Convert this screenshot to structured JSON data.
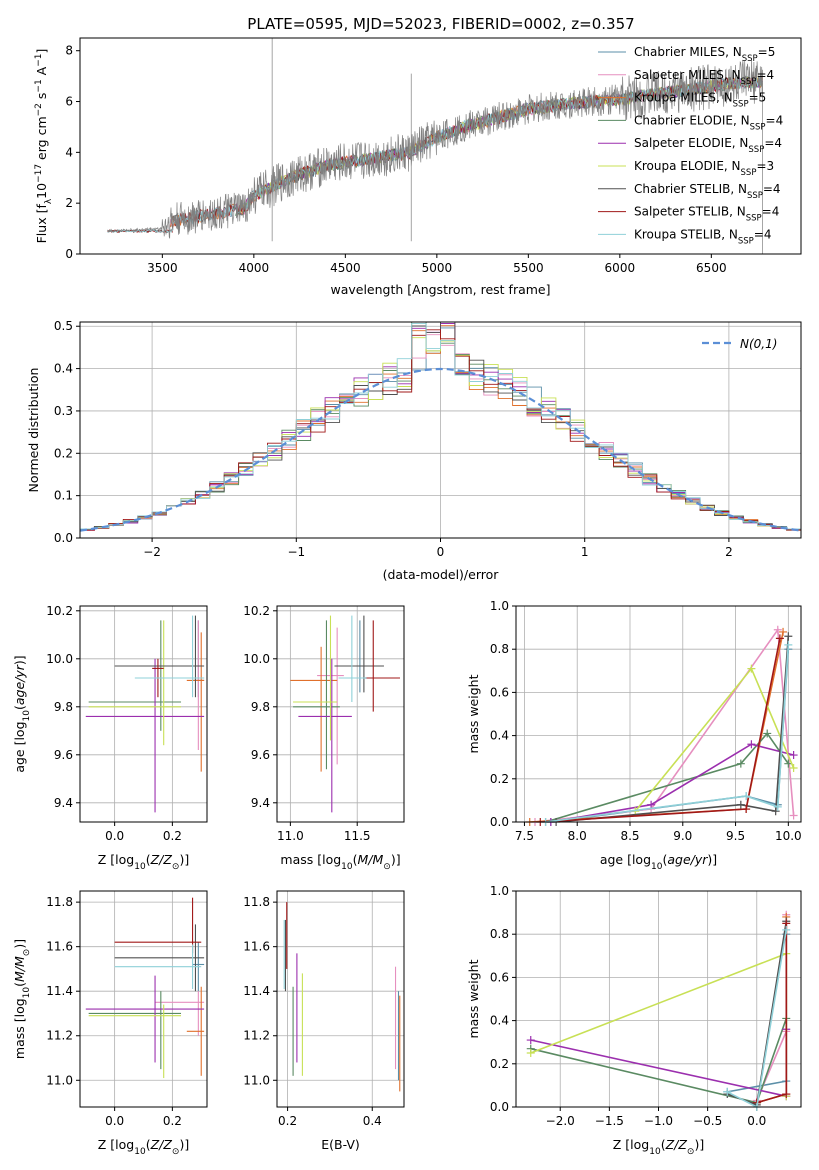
{
  "figure_title": "PLATE=0595, MJD=52023, FIBERID=0002, z=0.357",
  "colors": {
    "Chabrier MILES": "#5b8fa8",
    "Salpeter MILES": "#e68fbf",
    "Kroupa MILES": "#e0702c",
    "Chabrier ELODIE": "#5a8a62",
    "Salpeter ELODIE": "#9b2fae",
    "Kroupa ELODIE": "#c8e055",
    "Chabrier STELIB": "#505050",
    "Salpeter STELIB": "#a01818",
    "Kroupa STELIB": "#8fd0d8",
    "data": "#808080",
    "normal": "#5b8fd6"
  },
  "chart_data": [
    {
      "id": "spectrum",
      "type": "line",
      "title": "PLATE=0595, MJD=52023, FIBERID=0002, z=0.357",
      "xlabel": "wavelength [Angstrom, rest frame]",
      "ylabel": "Flux [f_λ 10^-17 erg cm^-2 s^-1 A^-1]",
      "xlim": [
        3050,
        6990
      ],
      "ylim": [
        0,
        8.5
      ],
      "xticks": [
        3500,
        4000,
        4500,
        5000,
        5500,
        6000,
        6500
      ],
      "yticks": [
        0,
        2,
        4,
        6,
        8
      ],
      "legend_position": "upper-right",
      "legend": [
        {
          "series": "Chabrier MILES",
          "base": "Chabrier MILES, N",
          "sub": "SSP",
          "val": "=5"
        },
        {
          "series": "Salpeter MILES",
          "base": "Salpeter MILES, N",
          "sub": "SSP",
          "val": "=4"
        },
        {
          "series": "Kroupa MILES",
          "base": "Kroupa MILES, N",
          "sub": "SSP",
          "val": "=5"
        },
        {
          "series": "Chabrier ELODIE",
          "base": "Chabrier ELODIE, N",
          "sub": "SSP",
          "val": "=4"
        },
        {
          "series": "Salpeter ELODIE",
          "base": "Salpeter ELODIE, N",
          "sub": "SSP",
          "val": "=4"
        },
        {
          "series": "Kroupa ELODIE",
          "base": "Kroupa ELODIE, N",
          "sub": "SSP",
          "val": "=3"
        },
        {
          "series": "Chabrier STELIB",
          "base": "Chabrier STELIB, N",
          "sub": "SSP",
          "val": "=4"
        },
        {
          "series": "Salpeter STELIB",
          "base": "Salpeter STELIB, N",
          "sub": "SSP",
          "val": "=4"
        },
        {
          "series": "Kroupa STELIB",
          "base": "Kroupa STELIB, N",
          "sub": "SSP",
          "val": "=4"
        }
      ],
      "model_start": {
        "MILES": 3540,
        "ELODIE": 3900,
        "STELIB": 3200
      },
      "continuum": [
        [
          3200,
          0.9
        ],
        [
          3500,
          1.0
        ],
        [
          3550,
          1.3
        ],
        [
          3800,
          1.6
        ],
        [
          3950,
          1.8
        ],
        [
          4000,
          2.3
        ],
        [
          4200,
          3.0
        ],
        [
          4400,
          3.5
        ],
        [
          4600,
          3.7
        ],
        [
          4850,
          4.0
        ],
        [
          5000,
          4.6
        ],
        [
          5150,
          5.0
        ],
        [
          5300,
          5.3
        ],
        [
          5500,
          5.7
        ],
        [
          5700,
          5.9
        ],
        [
          6000,
          6.1
        ],
        [
          6300,
          6.4
        ],
        [
          6600,
          6.7
        ],
        [
          6800,
          6.8
        ]
      ],
      "spikes": [
        [
          4100,
          8.8
        ],
        [
          4860,
          7.1
        ]
      ],
      "data_extent": [
        3200,
        6780
      ]
    },
    {
      "id": "residuals",
      "type": "line",
      "xlabel": "(data-model)/error",
      "ylabel": "Normed distribution",
      "xlim": [
        -2.5,
        2.5
      ],
      "ylim": [
        0,
        0.51
      ],
      "xticks": [
        -2,
        -1,
        0,
        1,
        2
      ],
      "yticks": [
        0.0,
        0.1,
        0.2,
        0.3,
        0.4,
        0.5
      ],
      "legend_position": "upper-right",
      "curve_label": "N(0,1)",
      "bin_width": 0.1
    },
    {
      "id": "age_vs_Z",
      "type": "scatter",
      "xlabel": "Z [log10(Z/Z⊙)]",
      "ylabel": "age [log10(age/yr)]",
      "xlim": [
        -0.12,
        0.32
      ],
      "ylim": [
        9.32,
        10.22
      ],
      "xticks": [
        0.0,
        0.2
      ],
      "yticks": [
        9.4,
        9.6,
        9.8,
        10.0,
        10.2
      ],
      "points": [
        {
          "s": "Chabrier MILES",
          "x": 0.29,
          "y": 9.91,
          "xe": [
            0.02,
            0.02
          ],
          "ye": [
            0.07,
            0.25
          ]
        },
        {
          "s": "Salpeter MILES",
          "x": 0.29,
          "y": 9.92,
          "xe": [
            0.15,
            0.02
          ],
          "ye": [
            0.3,
            0.24
          ]
        },
        {
          "s": "Kroupa MILES",
          "x": 0.3,
          "y": 9.91,
          "xe": [
            0.05,
            0.01
          ],
          "ye": [
            0.38,
            0.2
          ]
        },
        {
          "s": "Chabrier ELODIE",
          "x": 0.16,
          "y": 9.82,
          "xe": [
            0.25,
            0.07
          ],
          "ye": [
            0.12,
            0.34
          ]
        },
        {
          "s": "Salpeter ELODIE",
          "x": 0.14,
          "y": 9.76,
          "xe": [
            0.24,
            0.17
          ],
          "ye": [
            0.4,
            0.24
          ]
        },
        {
          "s": "Kroupa ELODIE",
          "x": 0.17,
          "y": 9.8,
          "xe": [
            0.26,
            0.06
          ],
          "ye": [
            0.16,
            0.36
          ]
        },
        {
          "s": "Chabrier STELIB",
          "x": 0.28,
          "y": 9.97,
          "xe": [
            0.28,
            0.03
          ],
          "ye": [
            0.13,
            0.21
          ]
        },
        {
          "s": "Salpeter STELIB",
          "x": 0.15,
          "y": 9.96,
          "xe": [
            0.02,
            0.02
          ],
          "ye": [
            0.12,
            0.04
          ]
        },
        {
          "s": "Kroupa STELIB",
          "x": 0.27,
          "y": 9.92,
          "xe": [
            0.2,
            0.04
          ],
          "ye": [
            0.08,
            0.26
          ]
        }
      ]
    },
    {
      "id": "age_vs_mass",
      "type": "scatter",
      "xlabel": "mass [log10(M/M⊙)]",
      "ylabel": "",
      "xlim": [
        10.9,
        11.85
      ],
      "ylim": [
        9.32,
        10.22
      ],
      "xticks": [
        11.0,
        11.5
      ],
      "yticks": [
        9.4,
        9.6,
        9.8,
        10.0,
        10.2
      ],
      "points": [
        {
          "s": "Chabrier MILES",
          "x": 11.52,
          "y": 9.92,
          "xe": [
            0.12,
            0.1
          ],
          "ye": [
            0.06,
            0.24
          ]
        },
        {
          "s": "Salpeter MILES",
          "x": 11.35,
          "y": 9.93,
          "xe": [
            0.15,
            0.05
          ],
          "ye": [
            0.37,
            0.2
          ]
        },
        {
          "s": "Kroupa MILES",
          "x": 11.23,
          "y": 9.91,
          "xe": [
            0.23,
            0.12
          ],
          "ye": [
            0.38,
            0.14
          ]
        },
        {
          "s": "Chabrier ELODIE",
          "x": 11.27,
          "y": 9.8,
          "xe": [
            0.25,
            0.1
          ],
          "ye": [
            0.26,
            0.36
          ]
        },
        {
          "s": "Salpeter ELODIE",
          "x": 11.31,
          "y": 9.76,
          "xe": [
            0.25,
            0.15
          ],
          "ye": [
            0.4,
            0.24
          ]
        },
        {
          "s": "Kroupa ELODIE",
          "x": 11.3,
          "y": 9.82,
          "xe": [
            0.28,
            0.05
          ],
          "ye": [
            0.16,
            0.36
          ]
        },
        {
          "s": "Chabrier STELIB",
          "x": 11.55,
          "y": 9.97,
          "xe": [
            0.22,
            0.15
          ],
          "ye": [
            0.11,
            0.21
          ]
        },
        {
          "s": "Salpeter STELIB",
          "x": 11.62,
          "y": 9.92,
          "xe": [
            0.05,
            0.2
          ],
          "ye": [
            0.14,
            0.24
          ]
        },
        {
          "s": "Kroupa STELIB",
          "x": 11.46,
          "y": 9.92,
          "xe": [
            0.1,
            0.1
          ],
          "ye": [
            0.1,
            0.26
          ]
        }
      ]
    },
    {
      "id": "weight_vs_age",
      "type": "line",
      "xlabel": "age [log10(age/yr)]",
      "ylabel": "mass weight",
      "xlim": [
        7.42,
        10.12
      ],
      "ylim": [
        0,
        1
      ],
      "xticks": [
        7.5,
        8.0,
        8.5,
        9.0,
        9.5,
        10.0
      ],
      "yticks": [
        0.0,
        0.2,
        0.4,
        0.6,
        0.8,
        1.0
      ],
      "series": [
        {
          "s": "Chabrier MILES",
          "x": [
            7.75,
            9.6,
            9.9,
            10.0
          ],
          "y": [
            0.0,
            0.12,
            0.08,
            0.8
          ]
        },
        {
          "s": "Salpeter MILES",
          "x": [
            7.6,
            8.7,
            9.9,
            10.05
          ],
          "y": [
            0.0,
            0.06,
            0.89,
            0.03
          ]
        },
        {
          "s": "Kroupa MILES",
          "x": [
            7.55,
            9.6,
            9.95
          ],
          "y": [
            0.0,
            0.06,
            0.88
          ]
        },
        {
          "s": "Chabrier ELODIE",
          "x": [
            7.7,
            9.55,
            9.8,
            10.0
          ],
          "y": [
            0.0,
            0.27,
            0.41,
            0.27
          ]
        },
        {
          "s": "Salpeter ELODIE",
          "x": [
            7.75,
            8.7,
            9.65,
            10.05
          ],
          "y": [
            0.0,
            0.08,
            0.36,
            0.31
          ]
        },
        {
          "s": "Kroupa ELODIE",
          "x": [
            8.55,
            9.65,
            10.05
          ],
          "y": [
            0.05,
            0.71,
            0.25
          ]
        },
        {
          "s": "Chabrier STELIB",
          "x": [
            7.8,
            9.55,
            9.88,
            10.0
          ],
          "y": [
            0.0,
            0.08,
            0.05,
            0.86
          ]
        },
        {
          "s": "Salpeter STELIB",
          "x": [
            7.65,
            9.6,
            9.92
          ],
          "y": [
            0.0,
            0.06,
            0.85
          ]
        },
        {
          "s": "Kroupa STELIB",
          "x": [
            7.7,
            9.6,
            9.9,
            10.0
          ],
          "y": [
            0.0,
            0.12,
            0.07,
            0.82
          ]
        }
      ]
    },
    {
      "id": "mass_vs_Z",
      "type": "scatter",
      "xlabel": "Z [log10(Z/Z⊙)]",
      "ylabel": "mass [log10(M/M⊙)]",
      "xlim": [
        -0.12,
        0.32
      ],
      "ylim": [
        10.88,
        11.85
      ],
      "xticks": [
        0.0,
        0.2
      ],
      "yticks": [
        11.0,
        11.2,
        11.4,
        11.6,
        11.8
      ],
      "points": [
        {
          "s": "Chabrier MILES",
          "x": 0.29,
          "y": 11.52,
          "xe": [
            0.02,
            0.02
          ],
          "ye": [
            0.12,
            0.1
          ]
        },
        {
          "s": "Salpeter MILES",
          "x": 0.29,
          "y": 11.35,
          "xe": [
            0.15,
            0.02
          ],
          "ye": [
            0.15,
            0.05
          ]
        },
        {
          "s": "Kroupa MILES",
          "x": 0.3,
          "y": 11.22,
          "xe": [
            0.05,
            0.01
          ],
          "ye": [
            0.2,
            0.2
          ]
        },
        {
          "s": "Chabrier ELODIE",
          "x": 0.16,
          "y": 11.3,
          "xe": [
            0.25,
            0.07
          ],
          "ye": [
            0.25,
            0.1
          ]
        },
        {
          "s": "Salpeter ELODIE",
          "x": 0.14,
          "y": 11.32,
          "xe": [
            0.24,
            0.17
          ],
          "ye": [
            0.24,
            0.15
          ]
        },
        {
          "s": "Kroupa ELODIE",
          "x": 0.17,
          "y": 11.29,
          "xe": [
            0.26,
            0.06
          ],
          "ye": [
            0.28,
            0.05
          ]
        },
        {
          "s": "Chabrier STELIB",
          "x": 0.28,
          "y": 11.55,
          "xe": [
            0.28,
            0.03
          ],
          "ye": [
            0.15,
            0.15
          ]
        },
        {
          "s": "Salpeter STELIB",
          "x": 0.27,
          "y": 11.62,
          "xe": [
            0.27,
            0.03
          ],
          "ye": [
            0.05,
            0.2
          ]
        },
        {
          "s": "Kroupa STELIB",
          "x": 0.27,
          "y": 11.51,
          "xe": [
            0.27,
            0.03
          ],
          "ye": [
            0.1,
            0.1
          ]
        }
      ]
    },
    {
      "id": "mass_vs_EBV",
      "type": "scatter",
      "xlabel": "E(B-V)",
      "ylabel": "",
      "xlim": [
        0.175,
        0.475
      ],
      "ylim": [
        10.88,
        11.85
      ],
      "xticks": [
        0.2,
        0.4
      ],
      "yticks": [
        11.0,
        11.2,
        11.4,
        11.6,
        11.8
      ],
      "points": [
        {
          "s": "Chabrier MILES",
          "x": 0.462,
          "y": 11.25,
          "ye": [
            0.25,
            0.15
          ]
        },
        {
          "s": "Salpeter MILES",
          "x": 0.455,
          "y": 11.35,
          "ye": [
            0.3,
            0.16
          ]
        },
        {
          "s": "Kroupa MILES",
          "x": 0.465,
          "y": 11.2,
          "ye": [
            0.25,
            0.18
          ]
        },
        {
          "s": "Chabrier ELODIE",
          "x": 0.213,
          "y": 11.3,
          "ye": [
            0.28,
            0.12
          ]
        },
        {
          "s": "Salpeter ELODIE",
          "x": 0.222,
          "y": 11.32,
          "ye": [
            0.24,
            0.25
          ]
        },
        {
          "s": "Kroupa ELODIE",
          "x": 0.235,
          "y": 11.3,
          "ye": [
            0.28,
            0.18
          ]
        },
        {
          "s": "Chabrier STELIB",
          "x": 0.195,
          "y": 11.55,
          "ye": [
            0.15,
            0.17
          ]
        },
        {
          "s": "Salpeter STELIB",
          "x": 0.198,
          "y": 11.62,
          "ye": [
            0.12,
            0.18
          ]
        },
        {
          "s": "Kroupa STELIB",
          "x": 0.192,
          "y": 11.51,
          "ye": [
            0.1,
            0.21
          ]
        }
      ]
    },
    {
      "id": "weight_vs_Z",
      "type": "line",
      "xlabel": "Z [log10(Z/Z⊙)]",
      "ylabel": "mass weight",
      "xlim": [
        -2.45,
        0.45
      ],
      "ylim": [
        0,
        1
      ],
      "xticks": [
        -2.0,
        -1.5,
        -1.0,
        -0.5,
        0.0
      ],
      "yticks": [
        0.0,
        0.2,
        0.4,
        0.6,
        0.8,
        1.0
      ],
      "series": [
        {
          "s": "Chabrier MILES",
          "x": [
            -0.3,
            0.3,
            0.3
          ],
          "y": [
            0.07,
            0.12,
            0.8
          ]
        },
        {
          "s": "Salpeter MILES",
          "x": [
            0.0,
            0.3,
            0.3
          ],
          "y": [
            0.03,
            0.35,
            0.89
          ]
        },
        {
          "s": "Kroupa MILES",
          "x": [
            0.0,
            0.3,
            0.3
          ],
          "y": [
            0.02,
            0.06,
            0.88
          ]
        },
        {
          "s": "Chabrier ELODIE",
          "x": [
            -2.3,
            0.0,
            0.3
          ],
          "y": [
            0.27,
            0.02,
            0.41
          ]
        },
        {
          "s": "Salpeter ELODIE",
          "x": [
            -2.3,
            0.3,
            0.3
          ],
          "y": [
            0.31,
            0.05,
            0.36
          ]
        },
        {
          "s": "Kroupa ELODIE",
          "x": [
            -2.3,
            0.3,
            0.3
          ],
          "y": [
            0.25,
            0.71,
            0.05
          ]
        },
        {
          "s": "Chabrier STELIB",
          "x": [
            -0.3,
            0.0,
            0.3
          ],
          "y": [
            0.06,
            0.01,
            0.86
          ]
        },
        {
          "s": "Salpeter STELIB",
          "x": [
            0.0,
            0.3,
            0.3
          ],
          "y": [
            0.02,
            0.06,
            0.85
          ]
        },
        {
          "s": "Kroupa STELIB",
          "x": [
            -0.3,
            0.0,
            0.3
          ],
          "y": [
            0.07,
            0.0,
            0.82
          ]
        }
      ]
    }
  ]
}
